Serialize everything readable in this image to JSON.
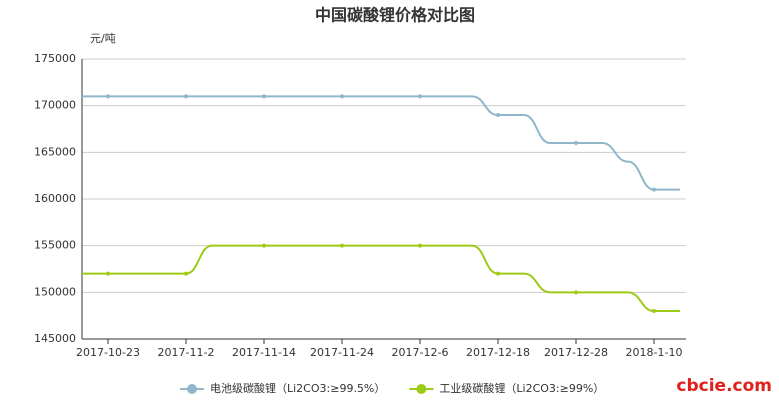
{
  "chart_data": {
    "type": "line",
    "title": "中国碳酸锂价格对比图",
    "y_label": "元/吨",
    "categories": [
      null,
      "2017-10-23",
      null,
      null,
      "2017-11-2",
      null,
      null,
      "2017-11-14",
      null,
      null,
      "2017-11-24",
      null,
      null,
      "2017-12-6",
      null,
      null,
      "2017-12-18",
      null,
      null,
      "2017-12-28",
      null,
      null,
      "2018-1-10",
      null
    ],
    "series": [
      {
        "name": "电池级碳酸锂（Li2CO3:≥99.5%）",
        "color": "#8fb6ca",
        "values": [
          171000,
          171000,
          171000,
          171000,
          171000,
          171000,
          171000,
          171000,
          171000,
          171000,
          171000,
          171000,
          171000,
          171000,
          171000,
          171000,
          169000,
          169000,
          166000,
          166000,
          166000,
          164000,
          161000,
          161000
        ]
      },
      {
        "name": "工业级碳酸锂（Li2CO3:≥99%）",
        "color": "#9bcb14",
        "values": [
          152000,
          152000,
          152000,
          152000,
          152000,
          155000,
          155000,
          155000,
          155000,
          155000,
          155000,
          155000,
          155000,
          155000,
          155000,
          155000,
          152000,
          152000,
          150000,
          150000,
          150000,
          150000,
          148000,
          148000
        ]
      }
    ],
    "ylim": [
      145000,
      175000
    ],
    "yticks": [
      145000,
      150000,
      155000,
      160000,
      165000,
      170000,
      175000
    ],
    "grid": true,
    "legend": "bottom",
    "watermark": "cbcie.com"
  }
}
